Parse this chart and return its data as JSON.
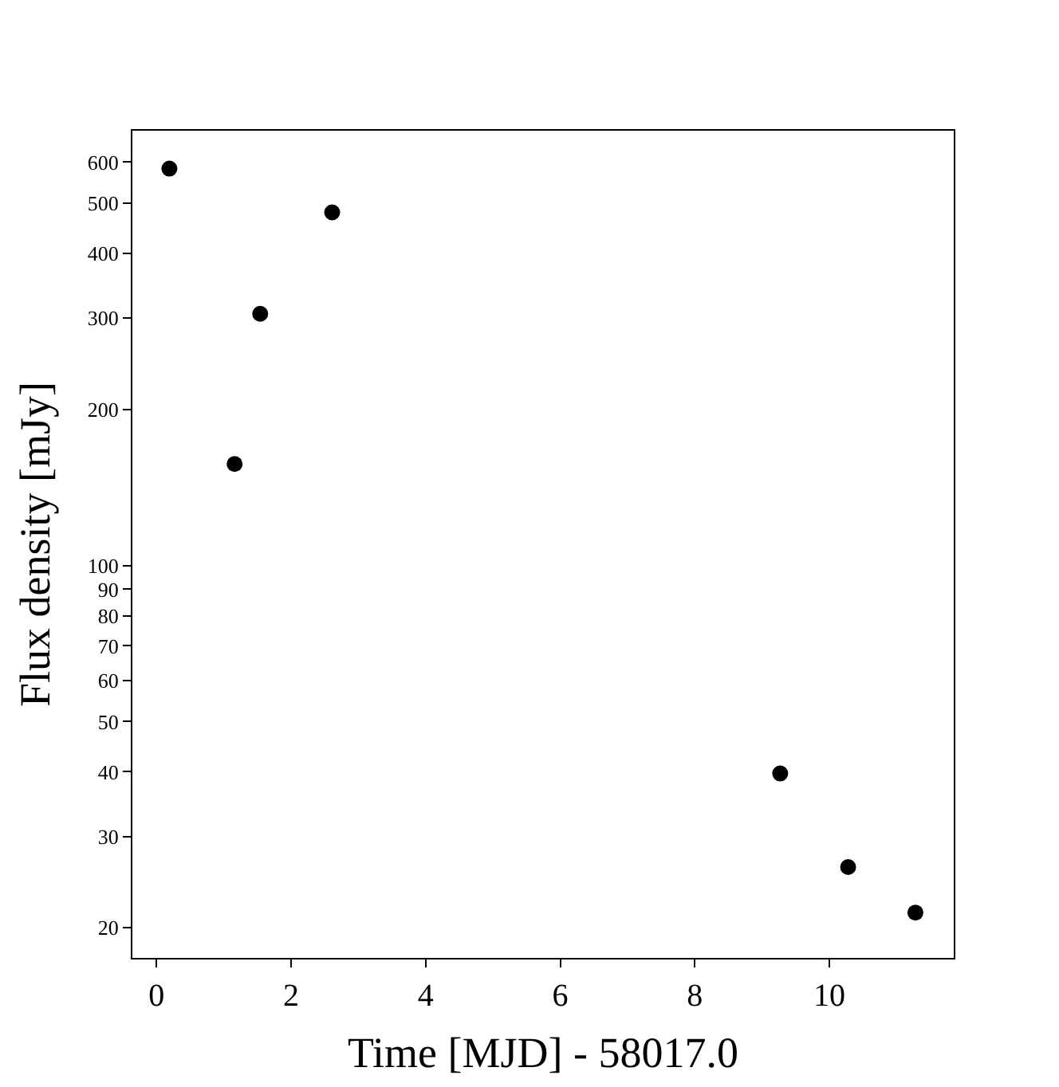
{
  "chart_data": {
    "type": "scatter",
    "xlabel": "Time [MJD] - 58017.0",
    "ylabel": "Flux density [mJy]",
    "x": [
      0.19,
      1.16,
      1.54,
      2.61,
      9.27,
      10.28,
      11.28
    ],
    "series": [
      {
        "color": "#000000",
        "values": [
          583,
          157,
          306,
          480,
          39.7,
          26.2,
          21.4
        ]
      }
    ],
    "log": "y",
    "marker": "circle",
    "xlim": [
      -0.36,
      11.85
    ],
    "xticks": [
      0,
      2,
      4,
      6,
      8,
      10
    ],
    "ylim": [
      17.5,
      690
    ],
    "yticks": [
      20,
      30,
      40,
      50,
      60,
      70,
      80,
      90,
      100,
      200,
      300,
      400,
      500,
      600
    ]
  }
}
